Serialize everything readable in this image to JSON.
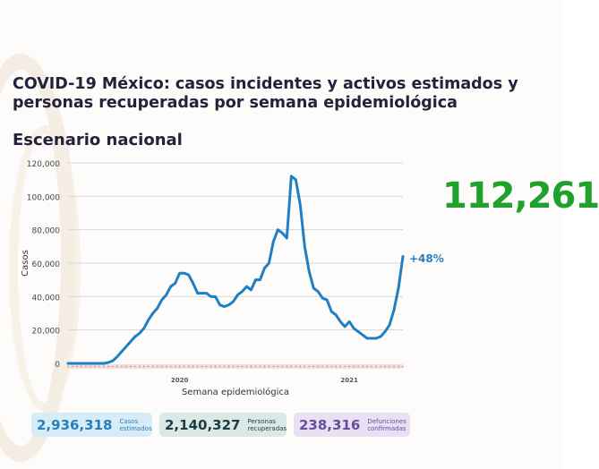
{
  "title": "COVID-19 México: casos incidentes y activos estimados y personas recuperadas por semana epidemiológica",
  "subtitle": "Escenario nacional",
  "highlight": {
    "value": "112,261",
    "color": "#1fa22b"
  },
  "change_label": "+48%",
  "cards": [
    {
      "value": "2,936,318",
      "label": "Casos estimados",
      "bg": "#d6ecf7",
      "color": "#2a7fb5"
    },
    {
      "value": "2,140,327",
      "label": "Personas recuperadas",
      "bg": "#dbe9e6",
      "color": "#1f3b44"
    },
    {
      "value": "238,316",
      "label": "Defunciones confirmadas",
      "bg": "#e7e1f3",
      "color": "#6a4c9c"
    }
  ],
  "chart_data": {
    "type": "line",
    "title": "",
    "xlabel": "Semana epidemiológica",
    "ylabel": "Casos",
    "ylim": [
      0,
      120000
    ],
    "yticks": [
      "0",
      "20,000",
      "40,000",
      "60,000",
      "80,000",
      "100,000",
      "120,000"
    ],
    "year_labels": [
      {
        "label": "2020",
        "index": 25
      },
      {
        "label": "2021",
        "index": 63
      }
    ],
    "grid": true,
    "series": [
      {
        "color": "#1f7fc4",
        "values": [
          0,
          0,
          0,
          0,
          0,
          0,
          0,
          0,
          0,
          500,
          1500,
          4000,
          7000,
          10000,
          13000,
          16000,
          18000,
          21000,
          26000,
          30000,
          33000,
          38000,
          41000,
          46000,
          48000,
          54000,
          54000,
          53000,
          48000,
          42000,
          42000,
          42000,
          40000,
          40000,
          35000,
          34000,
          35000,
          37000,
          41000,
          43000,
          46000,
          44000,
          50000,
          50000,
          57000,
          60000,
          73000,
          80000,
          78000,
          75000,
          112000,
          110000,
          95000,
          70000,
          55000,
          45000,
          43000,
          39000,
          38000,
          31000,
          29000,
          25000,
          22000,
          25000,
          21000,
          19000,
          17000,
          15000,
          15000,
          15000,
          16000,
          19000,
          23000,
          32000,
          45000,
          64000
        ]
      }
    ]
  }
}
